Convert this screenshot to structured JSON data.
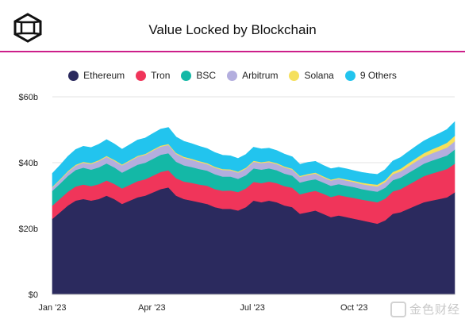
{
  "header": {
    "title": "Value Locked by Blockchain",
    "logo_icon": "cube-logo-icon",
    "accent_color": "#cc1f8a"
  },
  "watermark": {
    "text": "金色财经"
  },
  "chart_data": {
    "type": "area",
    "stacked": true,
    "title": "Value Locked by Blockchain",
    "xlabel": "",
    "ylabel": "",
    "ylim": [
      0,
      60
    ],
    "yticks": [
      0,
      20,
      40,
      60
    ],
    "ytick_labels": [
      "$0",
      "$20b",
      "$40b",
      "$60b"
    ],
    "xticks": [
      "2023-01-01",
      "2023-04-01",
      "2023-07-01",
      "2023-10-01"
    ],
    "xtick_labels": [
      "Jan '23",
      "Apr '23",
      "Jul '23",
      "Oct '23"
    ],
    "xlim": [
      "2023-01-01",
      "2023-12-31"
    ],
    "grid": "horizontal",
    "legend_position": "top",
    "x": [
      "2023-01-01",
      "2023-01-08",
      "2023-01-15",
      "2023-01-22",
      "2023-01-29",
      "2023-02-05",
      "2023-02-12",
      "2023-02-19",
      "2023-02-26",
      "2023-03-05",
      "2023-03-12",
      "2023-03-19",
      "2023-03-26",
      "2023-04-02",
      "2023-04-09",
      "2023-04-16",
      "2023-04-23",
      "2023-04-30",
      "2023-05-07",
      "2023-05-14",
      "2023-05-21",
      "2023-05-28",
      "2023-06-04",
      "2023-06-11",
      "2023-06-18",
      "2023-06-25",
      "2023-07-02",
      "2023-07-09",
      "2023-07-16",
      "2023-07-23",
      "2023-07-30",
      "2023-08-06",
      "2023-08-13",
      "2023-08-20",
      "2023-08-27",
      "2023-09-03",
      "2023-09-10",
      "2023-09-17",
      "2023-09-24",
      "2023-10-01",
      "2023-10-08",
      "2023-10-15",
      "2023-10-22",
      "2023-10-29",
      "2023-11-05",
      "2023-11-12",
      "2023-11-19",
      "2023-11-26",
      "2023-12-03",
      "2023-12-10",
      "2023-12-17",
      "2023-12-24",
      "2023-12-31"
    ],
    "series": [
      {
        "name": "Ethereum",
        "color": "#2b2a5e",
        "values": [
          23,
          25,
          27,
          28.5,
          29,
          28.5,
          29,
          30,
          29,
          27.5,
          28.5,
          29.5,
          30,
          31,
          32,
          32.5,
          30,
          29,
          28.5,
          28,
          27.5,
          26.5,
          26,
          26,
          25.5,
          26.5,
          28.5,
          28,
          28.5,
          28,
          27,
          26.5,
          24.5,
          25,
          25.5,
          24.5,
          23.5,
          24,
          23.5,
          23,
          22.5,
          22,
          21.5,
          22.5,
          24.5,
          25,
          26,
          27,
          28,
          28.5,
          29,
          29.5,
          31
        ]
      },
      {
        "name": "Tron",
        "color": "#f0355a",
        "values": [
          4,
          4.1,
          4.2,
          4.3,
          4.4,
          4.4,
          4.5,
          4.6,
          4.6,
          4.7,
          4.8,
          4.9,
          5,
          5.1,
          5.2,
          5.2,
          5.3,
          5.3,
          5.4,
          5.4,
          5.5,
          5.5,
          5.5,
          5.6,
          5.6,
          5.7,
          5.7,
          5.8,
          5.8,
          5.8,
          5.9,
          5.9,
          5.9,
          6,
          6,
          6.1,
          6.1,
          6.2,
          6.2,
          6.3,
          6.3,
          6.4,
          6.5,
          6.6,
          6.8,
          7,
          7.3,
          7.6,
          7.9,
          8.2,
          8.4,
          8.6,
          8.7
        ]
      },
      {
        "name": "BSC",
        "color": "#14b8a6",
        "values": [
          4.5,
          4.6,
          4.8,
          5,
          5.1,
          5,
          5.1,
          5.2,
          5,
          4.8,
          4.9,
          5,
          5,
          5.1,
          5.2,
          5.2,
          5,
          4.9,
          4.8,
          4.7,
          4.6,
          4.5,
          4.3,
          4.2,
          4,
          4,
          4.1,
          4.1,
          4,
          3.9,
          3.8,
          3.7,
          3.6,
          3.6,
          3.5,
          3.4,
          3.4,
          3.3,
          3.3,
          3.3,
          3.2,
          3.2,
          3.2,
          3.3,
          3.4,
          3.5,
          3.6,
          3.7,
          3.8,
          3.9,
          4,
          4.1,
          4.3
        ]
      },
      {
        "name": "Arbitrum",
        "color": "#b3aede",
        "values": [
          1,
          1.1,
          1.2,
          1.3,
          1.5,
          1.7,
          1.9,
          2,
          2,
          2.2,
          2.3,
          2.4,
          2.4,
          2.5,
          2.5,
          2.5,
          2.4,
          2.3,
          2.2,
          2.1,
          2,
          2,
          2,
          1.9,
          1.9,
          2,
          2,
          2,
          1.9,
          1.9,
          1.9,
          1.8,
          1.7,
          1.7,
          1.7,
          1.6,
          1.6,
          1.6,
          1.6,
          1.5,
          1.5,
          1.5,
          1.6,
          1.7,
          1.8,
          1.9,
          2,
          2.1,
          2.1,
          2.2,
          2.3,
          2.4,
          2.5
        ]
      },
      {
        "name": "Solana",
        "color": "#f5e05c",
        "values": [
          0.25,
          0.25,
          0.3,
          0.3,
          0.3,
          0.3,
          0.3,
          0.3,
          0.3,
          0.3,
          0.3,
          0.3,
          0.3,
          0.3,
          0.3,
          0.3,
          0.3,
          0.3,
          0.3,
          0.3,
          0.3,
          0.3,
          0.3,
          0.3,
          0.3,
          0.3,
          0.3,
          0.3,
          0.3,
          0.3,
          0.3,
          0.3,
          0.3,
          0.3,
          0.3,
          0.3,
          0.3,
          0.3,
          0.35,
          0.4,
          0.45,
          0.5,
          0.55,
          0.6,
          0.7,
          0.8,
          0.9,
          1,
          1.1,
          1.2,
          1.3,
          1.5,
          1.7
        ]
      },
      {
        "name": "9 Others",
        "color": "#22c4ee",
        "values": [
          4,
          4.2,
          4.4,
          4.6,
          4.7,
          4.7,
          4.8,
          4.9,
          4.8,
          4.6,
          4.7,
          4.8,
          4.8,
          4.9,
          5,
          5,
          4.8,
          4.7,
          4.6,
          4.5,
          4.4,
          4.3,
          4.2,
          4.1,
          4,
          4,
          4.1,
          4,
          3.9,
          3.8,
          3.7,
          3.6,
          3.5,
          3.5,
          3.4,
          3.3,
          3.3,
          3.2,
          3.2,
          3.1,
          3.1,
          3.1,
          3.1,
          3.2,
          3.3,
          3.4,
          3.5,
          3.6,
          3.7,
          3.8,
          3.9,
          4,
          4.2
        ]
      }
    ]
  }
}
